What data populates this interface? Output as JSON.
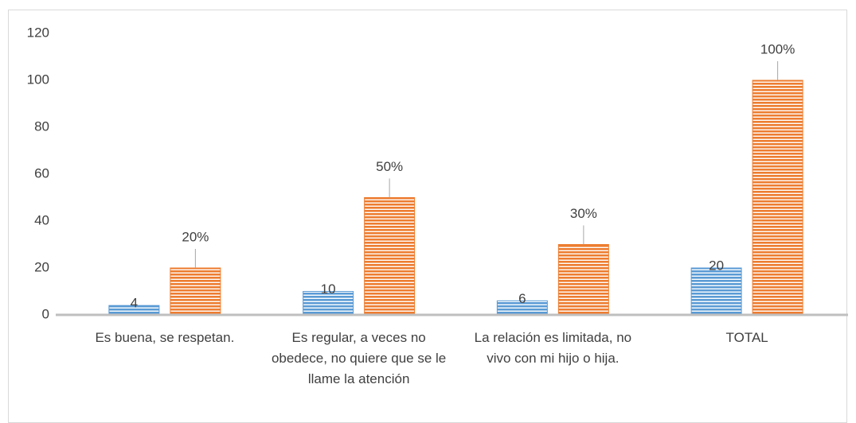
{
  "chart_data": {
    "type": "bar",
    "categories": [
      "Es buena, se respetan.",
      "Es regular, a veces no obedece, no quiere que se le llame la atención",
      "La relación es limitada, no vivo con mi hijo o hija.",
      "TOTAL"
    ],
    "series": [
      {
        "color": "#5b9bd5",
        "values": [
          4,
          10,
          6,
          20
        ]
      },
      {
        "color": "#ed7d31",
        "values": [
          20,
          50,
          30,
          100
        ],
        "value_labels": [
          "20%",
          "50%",
          "30%",
          "100%"
        ]
      }
    ],
    "ylim": [
      0,
      120
    ],
    "yticks": [
      0,
      20,
      40,
      60,
      80,
      100,
      120
    ],
    "grid": false
  }
}
